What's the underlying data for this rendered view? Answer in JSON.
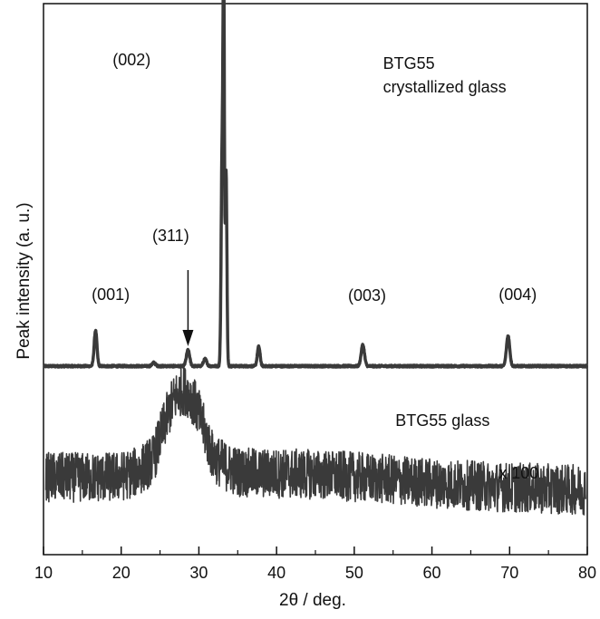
{
  "chart_data": {
    "type": "line",
    "title": "",
    "xlabel": "2θ / deg.",
    "ylabel": "Peak intensity (a. u.)",
    "xlim": [
      10,
      80
    ],
    "x_ticks": [
      10,
      20,
      30,
      40,
      50,
      60,
      70,
      80
    ],
    "y_ticks_shown": false,
    "grid": false,
    "series": [
      {
        "name": "BTG55 crystallized glass",
        "color": "#3a3a3a",
        "baseline": 0,
        "peaks": [
          {
            "x": 16.7,
            "height": 0.1,
            "width": 0.25
          },
          {
            "x": 24.2,
            "height": 0.01,
            "width": 0.3
          },
          {
            "x": 28.6,
            "height": 0.045,
            "width": 0.3
          },
          {
            "x": 30.8,
            "height": 0.02,
            "width": 0.3
          },
          {
            "x": 33.0,
            "height": 0.62,
            "width": 0.18
          },
          {
            "x": 33.2,
            "height": 1.0,
            "width": 0.12
          },
          {
            "x": 33.5,
            "height": 0.55,
            "width": 0.15
          },
          {
            "x": 37.7,
            "height": 0.055,
            "width": 0.25
          },
          {
            "x": 51.1,
            "height": 0.06,
            "width": 0.3
          },
          {
            "x": 69.8,
            "height": 0.085,
            "width": 0.3
          }
        ]
      },
      {
        "name": "BTG55 glass",
        "color": "#3a3a3a",
        "halo_center": 28.0,
        "halo_height": 1.0,
        "background_level": 0.42,
        "note_scale": "x 100"
      }
    ],
    "annotations": [
      {
        "text": "(002)",
        "x": 18.9
      },
      {
        "text": "BTG55",
        "x": 53.7
      },
      {
        "text": "crystallized glass",
        "x": 53.7
      },
      {
        "text": "(311)",
        "x": 24.0
      },
      {
        "text": "(001)",
        "x": 16.2
      },
      {
        "text": "(003)",
        "x": 49.2
      },
      {
        "text": "(004)",
        "x": 68.6
      },
      {
        "text": "BTG55 glass",
        "x": 55.3
      },
      {
        "text": "x 100",
        "x": 68.6
      }
    ],
    "arrow": {
      "x": 28.6,
      "points_to": "(311)"
    }
  }
}
